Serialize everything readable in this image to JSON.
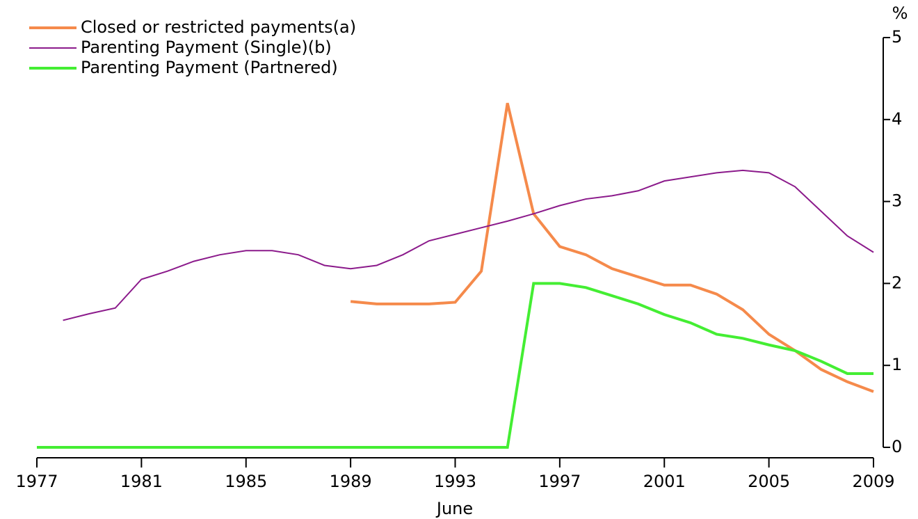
{
  "chart_data": {
    "type": "line",
    "x": [
      1977,
      1978,
      1979,
      1980,
      1981,
      1982,
      1983,
      1984,
      1985,
      1986,
      1987,
      1988,
      1989,
      1990,
      1991,
      1992,
      1993,
      1994,
      1995,
      1996,
      1997,
      1998,
      1999,
      2000,
      2001,
      2002,
      2003,
      2004,
      2005,
      2006,
      2007,
      2008,
      2009
    ],
    "series": [
      {
        "name": "Closed or restricted payments(a)",
        "color": "#f58a4b",
        "values": [
          null,
          null,
          null,
          null,
          null,
          null,
          null,
          null,
          null,
          null,
          null,
          null,
          1.78,
          1.75,
          1.75,
          1.75,
          1.77,
          2.15,
          4.2,
          2.85,
          2.45,
          2.35,
          2.18,
          2.08,
          1.98,
          1.98,
          1.87,
          1.68,
          1.38,
          1.18,
          0.95,
          0.8,
          0.68
        ]
      },
      {
        "name": "Parenting Payment (Single)(b)",
        "color": "#8b1a8b",
        "values": [
          null,
          1.55,
          1.63,
          1.7,
          2.05,
          2.15,
          2.27,
          2.35,
          2.4,
          2.4,
          2.35,
          2.22,
          2.18,
          2.22,
          2.35,
          2.52,
          2.6,
          2.68,
          2.76,
          2.85,
          2.95,
          3.03,
          3.07,
          3.13,
          3.25,
          3.3,
          3.35,
          3.38,
          3.35,
          3.18,
          2.88,
          2.58,
          2.38
        ]
      },
      {
        "name": "Parenting Payment (Partnered)",
        "color": "#44ee33",
        "values": [
          0,
          0,
          0,
          0,
          0,
          0,
          0,
          0,
          0,
          0,
          0,
          0,
          0,
          0,
          0,
          0,
          0,
          0,
          0,
          2.0,
          2.0,
          1.95,
          1.85,
          1.75,
          1.62,
          1.52,
          1.38,
          1.33,
          1.25,
          1.18,
          1.05,
          0.9,
          0.9
        ]
      }
    ],
    "xlabel": "June",
    "ylabel": "%",
    "xlim": [
      1977,
      2009
    ],
    "xticks": [
      1977,
      1981,
      1985,
      1989,
      1993,
      1997,
      2001,
      2005,
      2009
    ],
    "ylim": [
      0,
      5
    ],
    "yticks": [
      0,
      1,
      2,
      3,
      4,
      5
    ],
    "legend": "top-left",
    "grid": false
  }
}
